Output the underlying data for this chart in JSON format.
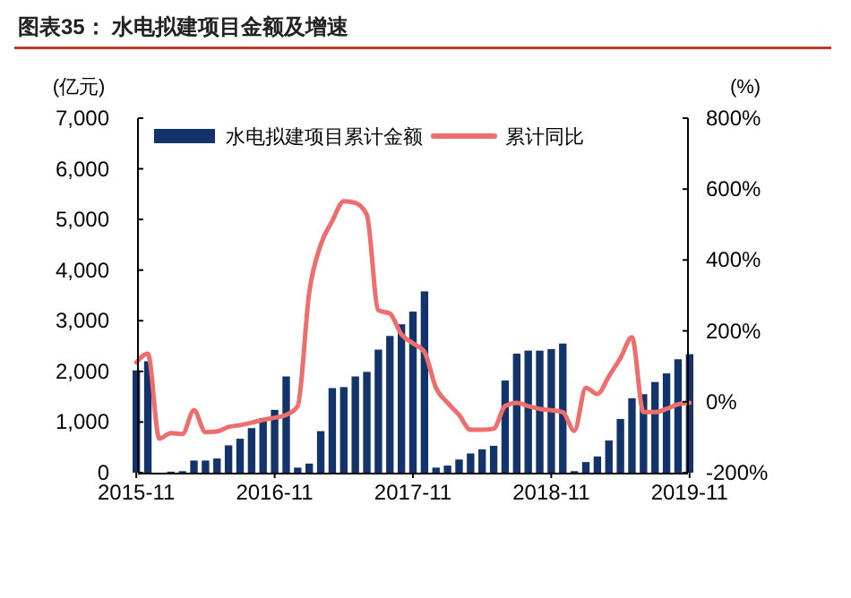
{
  "chart_data": {
    "type": "bar",
    "title": "图表35：  水电拟建项目金额及增速",
    "ylabel": "(亿元)",
    "y2label": "(%)",
    "categories": [
      "2015-11",
      null,
      null,
      null,
      null,
      null,
      null,
      null,
      null,
      null,
      null,
      null,
      "2016-11",
      null,
      null,
      null,
      null,
      null,
      null,
      null,
      null,
      null,
      null,
      null,
      "2017-11",
      null,
      null,
      null,
      null,
      null,
      null,
      null,
      null,
      null,
      null,
      null,
      "2018-11",
      null,
      null,
      null,
      null,
      null,
      null,
      null,
      null,
      null,
      null,
      null,
      "2019-11"
    ],
    "series": [
      {
        "name": "水电拟建项目累计金额",
        "color": "#13336b",
        "values": [
          2020,
          2200,
          null,
          20,
          30,
          240,
          240,
          280,
          540,
          670,
          880,
          1080,
          1240,
          1900,
          100,
          180,
          820,
          1670,
          1690,
          1900,
          1990,
          2430,
          2700,
          2930,
          3180,
          3580,
          100,
          140,
          260,
          380,
          460,
          530,
          1820,
          2350,
          2410,
          2410,
          2440,
          2550,
          30,
          210,
          320,
          635,
          1060,
          1470,
          1550,
          1790,
          1960,
          2240,
          2340
        ]
      },
      {
        "name": "累计同比",
        "type": "line",
        "axis": "y2",
        "color": "#ee6e6e",
        "values": [
          111,
          136,
          -104,
          -88,
          -91,
          -24,
          -86,
          -84,
          -71,
          -66,
          -59,
          -51,
          -45,
          -37,
          -12,
          308,
          443,
          510,
          566,
          561,
          527,
          258,
          249,
          190,
          165,
          140,
          39,
          -3,
          -37,
          -79,
          -79,
          -76,
          -12,
          -3,
          -12,
          -20,
          -24,
          -29,
          -82,
          39,
          22,
          72,
          123,
          182,
          -29,
          -29,
          -20,
          -7,
          -3
        ]
      }
    ],
    "ylim": [
      0,
      7000
    ],
    "yticks": [
      0,
      {
        "value": 1000,
        "label": "1,000"
      },
      {
        "value": 2000,
        "label": "2,000"
      },
      {
        "value": 3000,
        "label": "3,000"
      },
      {
        "value": 4000,
        "label": "4,000"
      },
      {
        "value": 5000,
        "label": "5,000"
      },
      {
        "value": 6000,
        "label": "6,000"
      },
      {
        "value": 7000,
        "label": "7,000"
      }
    ],
    "y2lim": [
      -200,
      800
    ],
    "y2ticks": [
      {
        "value": -200,
        "label": "-200%"
      },
      {
        "value": 0,
        "label": "0%"
      },
      {
        "value": 200,
        "label": "200%"
      },
      {
        "value": 400,
        "label": "400%"
      },
      {
        "value": 600,
        "label": "600%"
      },
      {
        "value": 800,
        "label": "800%"
      }
    ],
    "legend": "top",
    "grid": false
  }
}
